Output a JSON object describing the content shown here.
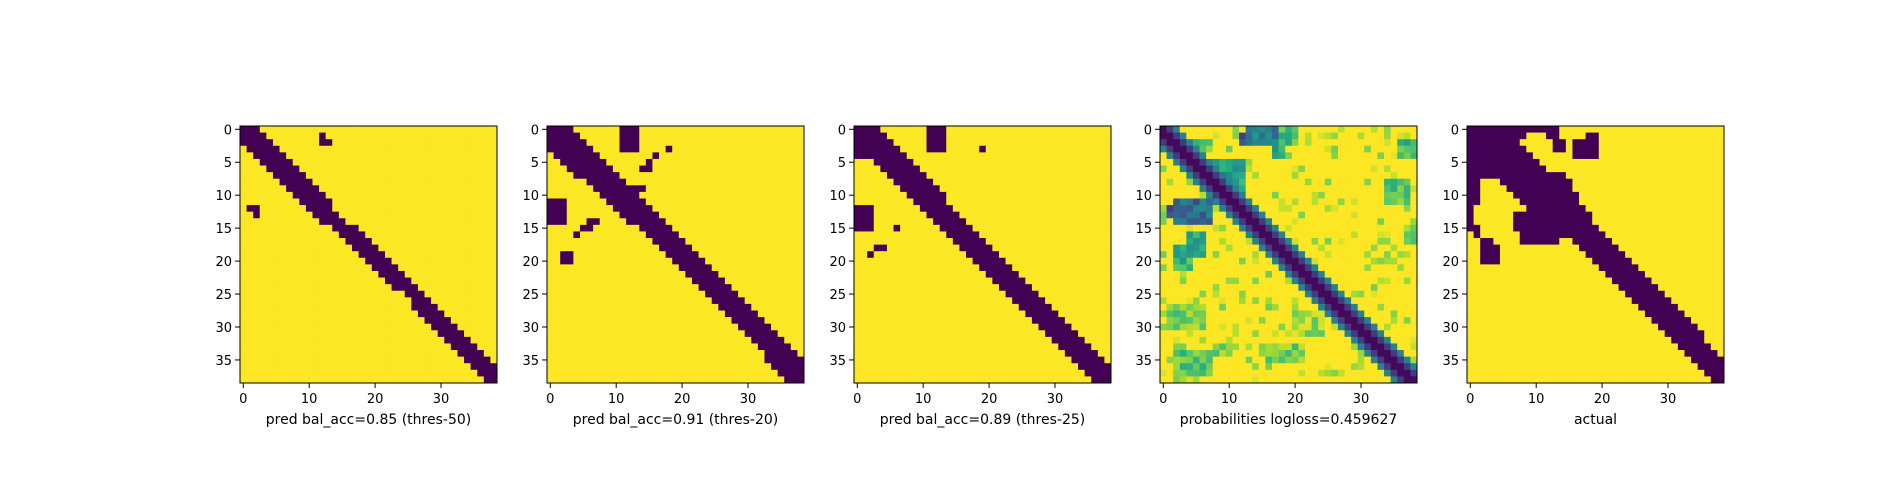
{
  "figure": {
    "background": "#ffffff"
  },
  "colormap": {
    "name": "viridis",
    "low": "#440154",
    "high": "#fde725"
  },
  "chart_data": [
    {
      "type": "heatmap",
      "xlabel": "pred bal_acc=0.85 (thres-50)",
      "n": 39,
      "xticks": [
        0,
        10,
        20,
        30
      ],
      "yticks": [
        0,
        5,
        10,
        15,
        20,
        25,
        30,
        35
      ],
      "value_kind": "binary",
      "band": [
        [
          0,
          0,
          2
        ],
        [
          1,
          0,
          3
        ],
        [
          2,
          0,
          4
        ],
        [
          3,
          1,
          5
        ],
        [
          4,
          2,
          6
        ],
        [
          5,
          3,
          7
        ],
        [
          6,
          4,
          8
        ],
        [
          7,
          5,
          9
        ],
        [
          8,
          6,
          10
        ],
        [
          9,
          7,
          11
        ],
        [
          10,
          8,
          12
        ],
        [
          11,
          9,
          13
        ],
        [
          12,
          10,
          13
        ],
        [
          13,
          11,
          14
        ],
        [
          14,
          12,
          15
        ],
        [
          15,
          14,
          17
        ],
        [
          16,
          15,
          18
        ],
        [
          17,
          16,
          19
        ],
        [
          18,
          17,
          20
        ],
        [
          19,
          18,
          21
        ],
        [
          20,
          19,
          22
        ],
        [
          21,
          20,
          23
        ],
        [
          22,
          21,
          24
        ],
        [
          23,
          22,
          25
        ],
        [
          24,
          23,
          26
        ],
        [
          25,
          25,
          27
        ],
        [
          26,
          26,
          28
        ],
        [
          27,
          26,
          29
        ],
        [
          28,
          27,
          30
        ],
        [
          29,
          28,
          31
        ],
        [
          30,
          29,
          32
        ],
        [
          31,
          30,
          33
        ],
        [
          32,
          31,
          34
        ],
        [
          33,
          32,
          35
        ],
        [
          34,
          33,
          36
        ],
        [
          35,
          34,
          37
        ],
        [
          36,
          35,
          38
        ],
        [
          37,
          36,
          38
        ],
        [
          38,
          37,
          38
        ]
      ],
      "blobs": [
        [
          1,
          12,
          1,
          1
        ],
        [
          2,
          12,
          1,
          2
        ],
        [
          12,
          1,
          1,
          2
        ],
        [
          13,
          2,
          1,
          1
        ]
      ]
    },
    {
      "type": "heatmap",
      "xlabel": "pred bal_acc=0.91 (thres-20)",
      "n": 39,
      "xticks": [
        0,
        10,
        20,
        30
      ],
      "yticks": [
        0,
        5,
        10,
        15,
        20,
        25,
        30,
        35
      ],
      "value_kind": "binary",
      "band": [
        [
          0,
          0,
          3
        ],
        [
          1,
          0,
          4
        ],
        [
          2,
          0,
          5
        ],
        [
          3,
          0,
          6
        ],
        [
          4,
          1,
          7
        ],
        [
          5,
          2,
          8
        ],
        [
          6,
          3,
          9
        ],
        [
          7,
          4,
          10
        ],
        [
          8,
          6,
          11
        ],
        [
          9,
          7,
          12
        ],
        [
          10,
          8,
          13
        ],
        [
          11,
          9,
          14
        ],
        [
          12,
          10,
          15
        ],
        [
          13,
          11,
          16
        ],
        [
          14,
          12,
          17
        ],
        [
          15,
          14,
          18
        ],
        [
          16,
          15,
          19
        ],
        [
          17,
          16,
          20
        ],
        [
          18,
          17,
          21
        ],
        [
          19,
          18,
          22
        ],
        [
          20,
          19,
          23
        ],
        [
          21,
          20,
          24
        ],
        [
          22,
          21,
          25
        ],
        [
          23,
          22,
          26
        ],
        [
          24,
          23,
          27
        ],
        [
          25,
          24,
          28
        ],
        [
          26,
          25,
          29
        ],
        [
          27,
          26,
          30
        ],
        [
          28,
          27,
          31
        ],
        [
          29,
          28,
          32
        ],
        [
          30,
          29,
          33
        ],
        [
          31,
          30,
          34
        ],
        [
          32,
          31,
          35
        ],
        [
          33,
          32,
          36
        ],
        [
          34,
          33,
          37
        ],
        [
          35,
          33,
          38
        ],
        [
          36,
          34,
          38
        ],
        [
          37,
          35,
          38
        ],
        [
          38,
          36,
          38
        ]
      ],
      "blobs": [
        [
          0,
          11,
          4,
          3
        ],
        [
          5,
          15,
          2,
          1
        ],
        [
          4,
          16,
          1,
          1
        ],
        [
          6,
          14,
          1,
          1
        ],
        [
          3,
          18,
          1,
          1
        ],
        [
          9,
          13,
          1,
          2
        ],
        [
          10,
          12,
          1,
          2
        ],
        [
          11,
          11,
          1,
          1
        ],
        [
          11,
          0,
          4,
          3
        ],
        [
          14,
          6,
          1,
          2
        ],
        [
          15,
          5,
          1,
          2
        ],
        [
          16,
          4,
          1,
          1
        ],
        [
          19,
          2,
          2,
          2
        ]
      ]
    },
    {
      "type": "heatmap",
      "xlabel": "pred bal_acc=0.89 (thres-25)",
      "n": 39,
      "xticks": [
        0,
        10,
        20,
        30
      ],
      "yticks": [
        0,
        5,
        10,
        15,
        20,
        25,
        30,
        35
      ],
      "value_kind": "binary",
      "band": [
        [
          0,
          0,
          3
        ],
        [
          1,
          0,
          4
        ],
        [
          2,
          0,
          5
        ],
        [
          3,
          0,
          6
        ],
        [
          4,
          0,
          7
        ],
        [
          5,
          3,
          8
        ],
        [
          6,
          4,
          9
        ],
        [
          7,
          5,
          10
        ],
        [
          8,
          6,
          11
        ],
        [
          9,
          7,
          12
        ],
        [
          10,
          8,
          13
        ],
        [
          11,
          9,
          13
        ],
        [
          12,
          10,
          14
        ],
        [
          13,
          11,
          15
        ],
        [
          14,
          12,
          16
        ],
        [
          15,
          13,
          17
        ],
        [
          16,
          14,
          18
        ],
        [
          17,
          15,
          19
        ],
        [
          18,
          16,
          20
        ],
        [
          19,
          17,
          21
        ],
        [
          20,
          18,
          22
        ],
        [
          21,
          19,
          23
        ],
        [
          22,
          20,
          24
        ],
        [
          23,
          21,
          25
        ],
        [
          24,
          22,
          26
        ],
        [
          25,
          23,
          27
        ],
        [
          26,
          24,
          28
        ],
        [
          27,
          25,
          29
        ],
        [
          28,
          26,
          30
        ],
        [
          29,
          27,
          31
        ],
        [
          30,
          28,
          32
        ],
        [
          31,
          29,
          33
        ],
        [
          32,
          30,
          34
        ],
        [
          33,
          31,
          35
        ],
        [
          34,
          32,
          36
        ],
        [
          35,
          33,
          37
        ],
        [
          36,
          34,
          38
        ],
        [
          37,
          35,
          38
        ],
        [
          38,
          36,
          38
        ]
      ],
      "blobs": [
        [
          0,
          11,
          4,
          3
        ],
        [
          3,
          19,
          1,
          1
        ],
        [
          12,
          0,
          4,
          3
        ],
        [
          15,
          6,
          1,
          1
        ],
        [
          18,
          3,
          1,
          2
        ],
        [
          19,
          2,
          1,
          1
        ]
      ]
    },
    {
      "type": "heatmap",
      "xlabel": "probabilities logloss=0.459627",
      "n": 39,
      "xticks": [
        0,
        10,
        20,
        30
      ],
      "yticks": [
        0,
        5,
        10,
        15,
        20,
        25,
        30,
        35
      ],
      "value_kind": "probability",
      "band_width": 2,
      "band_edge": 0.12,
      "noise_level": 0.82,
      "patches": [
        [
          0,
          13,
          3,
          5,
          0.45
        ],
        [
          1,
          12,
          2,
          2,
          0.3
        ],
        [
          0,
          18,
          3,
          3,
          0.7
        ],
        [
          3,
          17,
          2,
          2,
          0.6
        ],
        [
          5,
          7,
          5,
          6,
          0.6
        ],
        [
          7,
          8,
          2,
          2,
          0.4
        ],
        [
          11,
          2,
          4,
          6,
          0.35
        ],
        [
          12,
          1,
          2,
          3,
          0.25
        ],
        [
          16,
          4,
          4,
          3,
          0.6
        ],
        [
          18,
          2,
          4,
          3,
          0.65
        ],
        [
          8,
          34,
          4,
          4,
          0.75
        ],
        [
          2,
          36,
          3,
          3,
          0.7
        ],
        [
          2,
          5,
          2,
          3,
          0.75
        ],
        [
          27,
          1,
          4,
          6,
          0.8
        ],
        [
          34,
          2,
          4,
          6,
          0.75
        ],
        [
          33,
          8,
          2,
          3,
          0.8
        ],
        [
          33,
          16,
          3,
          6,
          0.8
        ],
        [
          28,
          20,
          4,
          5,
          0.85
        ],
        [
          15,
          37,
          3,
          2,
          0.8
        ]
      ]
    },
    {
      "type": "heatmap",
      "xlabel": "actual",
      "n": 39,
      "xticks": [
        0,
        10,
        20,
        30
      ],
      "yticks": [
        0,
        5,
        10,
        15,
        20,
        25,
        30,
        35
      ],
      "value_kind": "binary",
      "band": [
        [
          0,
          0,
          12
        ],
        [
          1,
          0,
          8
        ],
        [
          2,
          0,
          7
        ],
        [
          3,
          0,
          8
        ],
        [
          4,
          0,
          9
        ],
        [
          5,
          0,
          10
        ],
        [
          6,
          0,
          11
        ],
        [
          7,
          0,
          14
        ],
        [
          8,
          5,
          15
        ],
        [
          9,
          6,
          15
        ],
        [
          10,
          7,
          16
        ],
        [
          11,
          8,
          16
        ],
        [
          12,
          9,
          17
        ],
        [
          13,
          10,
          18
        ],
        [
          14,
          11,
          18
        ],
        [
          15,
          14,
          19
        ],
        [
          16,
          15,
          20
        ],
        [
          17,
          16,
          21
        ],
        [
          18,
          17,
          22
        ],
        [
          19,
          18,
          23
        ],
        [
          20,
          19,
          24
        ],
        [
          21,
          20,
          25
        ],
        [
          22,
          21,
          26
        ],
        [
          23,
          22,
          27
        ],
        [
          24,
          23,
          28
        ],
        [
          25,
          24,
          29
        ],
        [
          26,
          25,
          30
        ],
        [
          27,
          26,
          31
        ],
        [
          28,
          27,
          32
        ],
        [
          29,
          28,
          33
        ],
        [
          30,
          29,
          34
        ],
        [
          31,
          30,
          35
        ],
        [
          32,
          31,
          35
        ],
        [
          33,
          32,
          36
        ],
        [
          34,
          33,
          37
        ],
        [
          35,
          34,
          38
        ],
        [
          36,
          35,
          38
        ],
        [
          37,
          36,
          38
        ],
        [
          38,
          37,
          38
        ]
      ],
      "blobs": [
        [
          0,
          12,
          2,
          2
        ],
        [
          1,
          18,
          2,
          2
        ],
        [
          2,
          16,
          3,
          3
        ],
        [
          3,
          19,
          2,
          1
        ],
        [
          2,
          13,
          2,
          2
        ],
        [
          2,
          0,
          10,
          2
        ],
        [
          12,
          0,
          4,
          1
        ],
        [
          15,
          1,
          2,
          1
        ],
        [
          17,
          2,
          1,
          2
        ],
        [
          18,
          2,
          3,
          3
        ],
        [
          13,
          7,
          3,
          4
        ],
        [
          14,
          8,
          4,
          6
        ],
        [
          15,
          13,
          2,
          4
        ],
        [
          12,
          14,
          4,
          3
        ]
      ]
    }
  ]
}
